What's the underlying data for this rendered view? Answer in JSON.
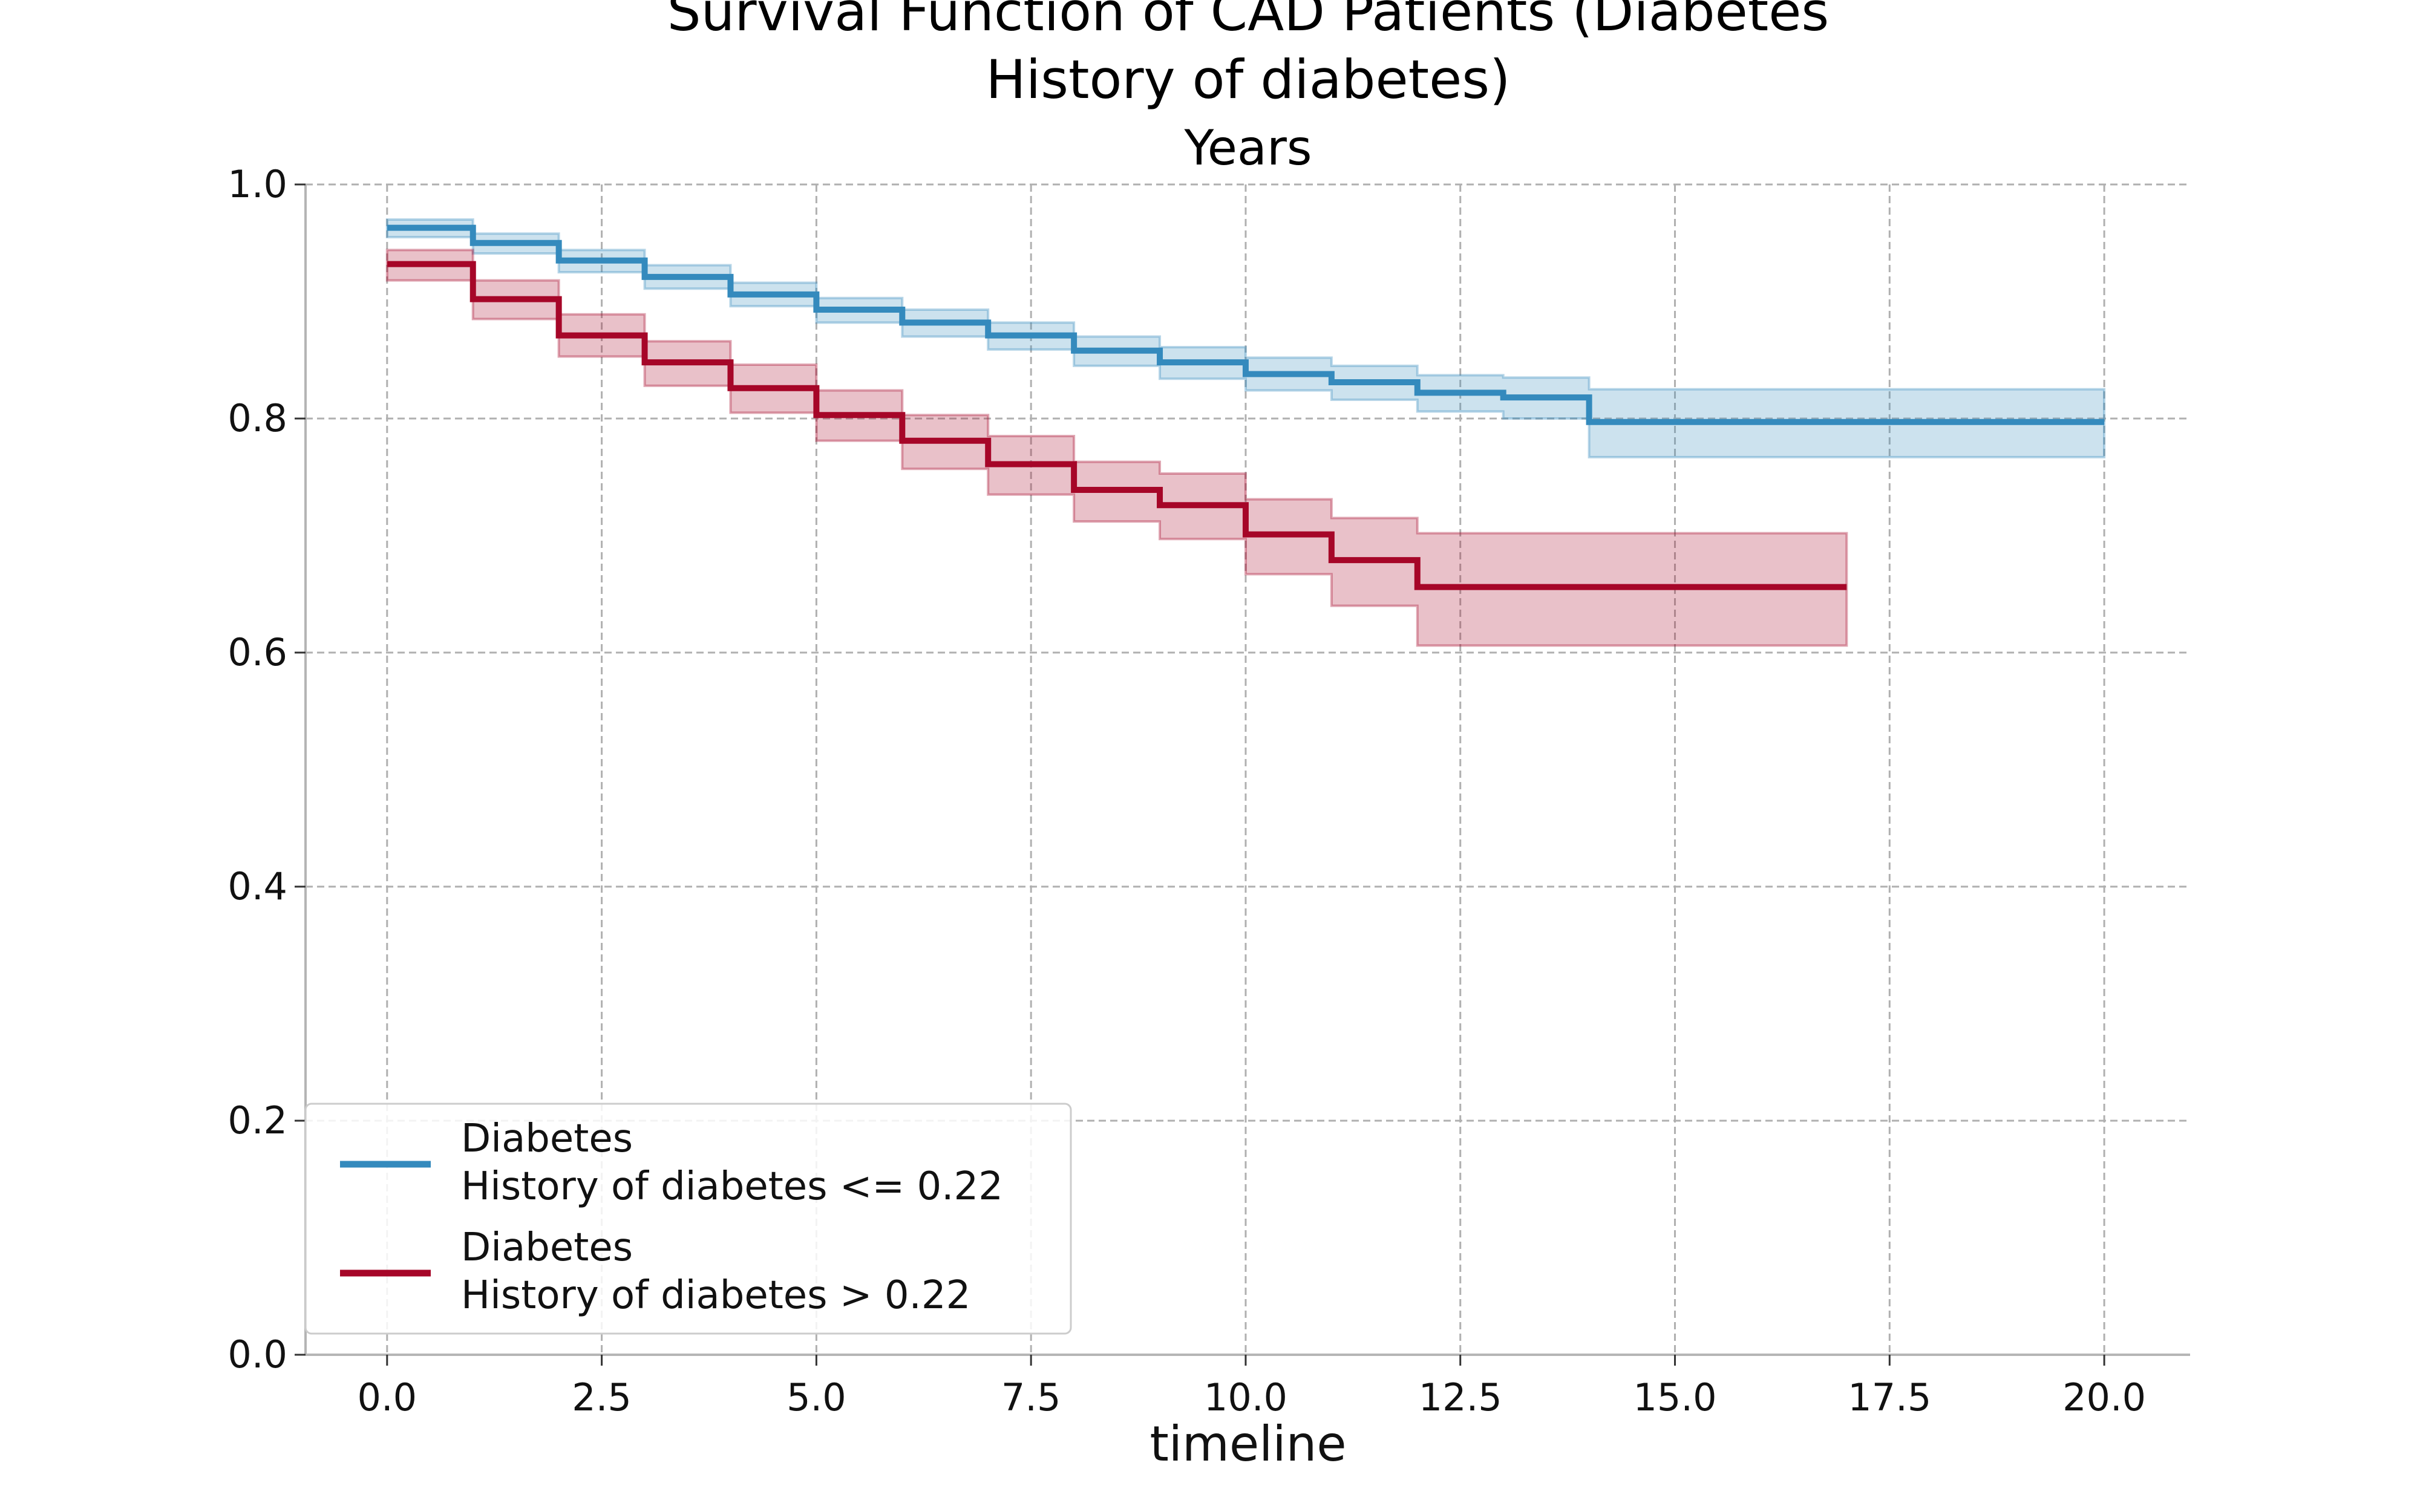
{
  "chart_data": {
    "type": "line",
    "step": true,
    "title_lines": [
      "Survival Function of CAD Patients (Diabetes",
      "History of diabetes)"
    ],
    "subtitle": "Years",
    "xlabel": "timeline",
    "ylabel": "",
    "xlim": [
      -0.95,
      21.0
    ],
    "ylim": [
      0.0,
      1.0
    ],
    "x_ticks": [
      0.0,
      2.5,
      5.0,
      7.5,
      10.0,
      12.5,
      15.0,
      17.5,
      20.0
    ],
    "x_tick_labels": [
      "0.0",
      "2.5",
      "5.0",
      "7.5",
      "10.0",
      "12.5",
      "15.0",
      "17.5",
      "20.0"
    ],
    "y_ticks": [
      0.0,
      0.2,
      0.4,
      0.6,
      0.8,
      1.0
    ],
    "y_tick_labels": [
      "0.0",
      "0.2",
      "0.4",
      "0.6",
      "0.8",
      "1.0"
    ],
    "grid": true,
    "legend_position": "lower-left",
    "series": [
      {
        "legend_line1": "Diabetes",
        "legend_line2": "History of diabetes <= 0.22",
        "color": "#348abd",
        "x": [
          0,
          1,
          2,
          3,
          4,
          5,
          6,
          7,
          8,
          9,
          10,
          11,
          12,
          13,
          14,
          20
        ],
        "y": [
          0.963,
          0.95,
          0.935,
          0.921,
          0.906,
          0.893,
          0.882,
          0.871,
          0.858,
          0.848,
          0.838,
          0.831,
          0.822,
          0.818,
          0.797,
          0.797
        ],
        "ci_lower": [
          0.955,
          0.941,
          0.925,
          0.911,
          0.896,
          0.882,
          0.87,
          0.859,
          0.845,
          0.834,
          0.824,
          0.816,
          0.806,
          0.8,
          0.767,
          0.767
        ],
        "ci_upper": [
          0.97,
          0.958,
          0.944,
          0.931,
          0.916,
          0.903,
          0.893,
          0.882,
          0.87,
          0.861,
          0.852,
          0.845,
          0.837,
          0.835,
          0.825,
          0.825
        ]
      },
      {
        "legend_line1": "Diabetes",
        "legend_line2": "History of diabetes > 0.22",
        "color": "#a60628",
        "x": [
          0,
          1,
          2,
          3,
          4,
          5,
          6,
          7,
          8,
          9,
          10,
          11,
          12,
          17
        ],
        "y": [
          0.932,
          0.902,
          0.871,
          0.848,
          0.826,
          0.803,
          0.781,
          0.761,
          0.739,
          0.726,
          0.701,
          0.679,
          0.656,
          0.656
        ],
        "ci_lower": [
          0.918,
          0.885,
          0.853,
          0.828,
          0.805,
          0.781,
          0.757,
          0.735,
          0.712,
          0.697,
          0.667,
          0.64,
          0.606,
          0.606
        ],
        "ci_upper": [
          0.944,
          0.918,
          0.889,
          0.866,
          0.846,
          0.824,
          0.803,
          0.785,
          0.763,
          0.753,
          0.731,
          0.715,
          0.702,
          0.702
        ]
      }
    ]
  }
}
